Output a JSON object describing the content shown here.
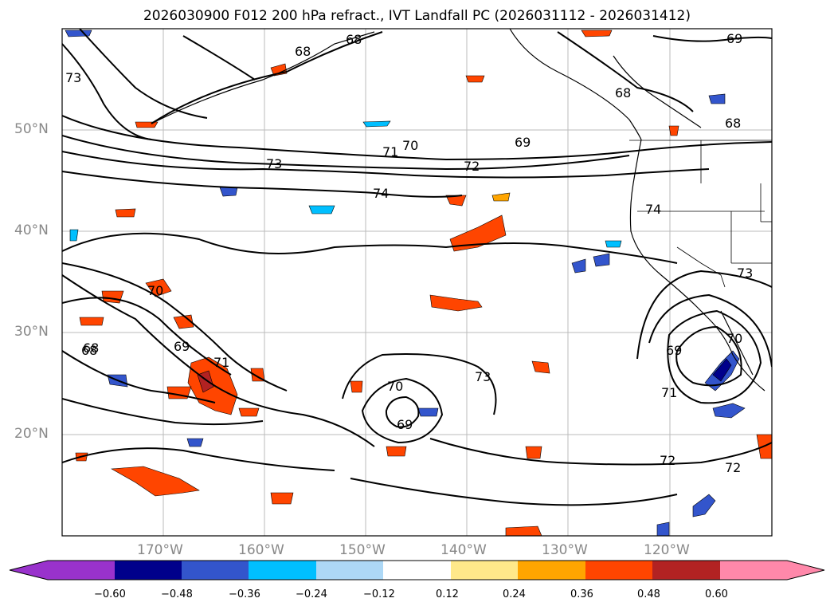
{
  "title": "2026030900 F012 200 hPa refract., IVT Landfall PC (2026031112 - 2026031412)",
  "map": {
    "lat_labels": [
      "50°N",
      "40°N",
      "30°N",
      "20°N"
    ],
    "lon_labels": [
      "170°W",
      "160°W",
      "150°W",
      "140°W",
      "130°W",
      "120°W"
    ],
    "contour_labels": [
      {
        "text": "68"
      },
      {
        "text": "68"
      },
      {
        "text": "68"
      },
      {
        "text": "69"
      },
      {
        "text": "73"
      },
      {
        "text": "68"
      },
      {
        "text": "68"
      },
      {
        "text": "69"
      },
      {
        "text": "70"
      },
      {
        "text": "71"
      },
      {
        "text": "72"
      },
      {
        "text": "73"
      },
      {
        "text": "74"
      },
      {
        "text": "74"
      },
      {
        "text": "73"
      },
      {
        "text": "70"
      },
      {
        "text": "68"
      },
      {
        "text": "69"
      },
      {
        "text": "71"
      },
      {
        "text": "73"
      },
      {
        "text": "70"
      },
      {
        "text": "69"
      },
      {
        "text": "69"
      },
      {
        "text": "71"
      },
      {
        "text": "70"
      },
      {
        "text": "72"
      },
      {
        "text": "72"
      }
    ]
  },
  "colorbar": {
    "colors": [
      "#9932CC",
      "#00008B",
      "#3355CC",
      "#00BFFF",
      "#ADD8F6",
      "#FFFFFF",
      "#FFE88A",
      "#FFA500",
      "#FF4500",
      "#B22222",
      "#FF88AA"
    ],
    "tick_labels": [
      "−0.60",
      "−0.48",
      "−0.36",
      "−0.24",
      "−0.12",
      "0.12",
      "0.24",
      "0.36",
      "0.48",
      "0.60"
    ]
  }
}
